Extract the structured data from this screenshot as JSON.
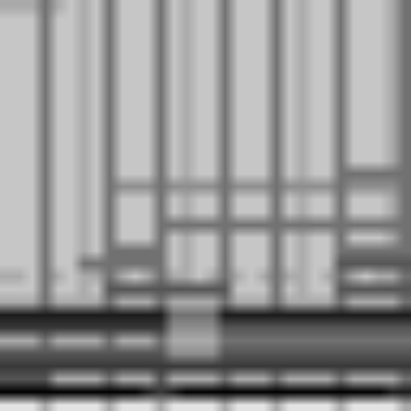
{
  "chart_data": {
    "type": "heatmap",
    "zlim": [
      0,
      9
    ],
    "color": "#000000",
    "tick_labels": false,
    "cells": [
      [
        1,
        1,
        1,
        3,
        1,
        1,
        1,
        1,
        3,
        1,
        1,
        1,
        3,
        1,
        1,
        1,
        1,
        3,
        1,
        1,
        1,
        3,
        1,
        1,
        1,
        1,
        3,
        1,
        1,
        1,
        1,
        3
      ],
      [
        9,
        9,
        9,
        9,
        9,
        9,
        9,
        9,
        9,
        9,
        9,
        8,
        7,
        8,
        9,
        9,
        9,
        9,
        9,
        9,
        9,
        9,
        9,
        9,
        9,
        9,
        9,
        9,
        9,
        9,
        8,
        8
      ],
      [
        6,
        6,
        6,
        6,
        3,
        3,
        3,
        3,
        5,
        3,
        3,
        3,
        6,
        3,
        3,
        3,
        3,
        5,
        3,
        3,
        3,
        5,
        3,
        3,
        3,
        3,
        5,
        3,
        3,
        3,
        3,
        5
      ],
      [
        7,
        7,
        7,
        7,
        7,
        7,
        7,
        7,
        7,
        7,
        7,
        7,
        7,
        7,
        7,
        7,
        7,
        7,
        7,
        7,
        7,
        7,
        7,
        7,
        7,
        7,
        7,
        7,
        7,
        7,
        7,
        7
      ],
      [
        6,
        6,
        6,
        6,
        6,
        6,
        6,
        6,
        6,
        6,
        6,
        6,
        6,
        4,
        4,
        4,
        4,
        6,
        6,
        6,
        6,
        6,
        6,
        6,
        6,
        6,
        6,
        6,
        6,
        6,
        6,
        6
      ],
      [
        3,
        3,
        3,
        5,
        3,
        3,
        3,
        3,
        5,
        3,
        3,
        3,
        5,
        3,
        3,
        3,
        3,
        5,
        5,
        5,
        5,
        5,
        5,
        5,
        5,
        5,
        5,
        5,
        5,
        5,
        5,
        5
      ],
      [
        7,
        7,
        7,
        7,
        7,
        7,
        7,
        7,
        7,
        7,
        7,
        7,
        7,
        4,
        4,
        4,
        4,
        6,
        6,
        6,
        6,
        6,
        6,
        6,
        6,
        6,
        6,
        6,
        6,
        6,
        6,
        6
      ],
      [
        8,
        8,
        8,
        8,
        8,
        8,
        8,
        8,
        8,
        8,
        8,
        8,
        8,
        5,
        5,
        5,
        5,
        8,
        8,
        8,
        8,
        8,
        8,
        8,
        8,
        8,
        8,
        8,
        8,
        8,
        8,
        8
      ],
      [
        3,
        3,
        3,
        5,
        3,
        3,
        3,
        3,
        5,
        3,
        3,
        3,
        5,
        3,
        3,
        3,
        3,
        5,
        3,
        3,
        3,
        5,
        3,
        3,
        3,
        3,
        5,
        3,
        3,
        3,
        3,
        5
      ],
      [
        2,
        2,
        2,
        5,
        2,
        2,
        3,
        2,
        6,
        6,
        6,
        6,
        6,
        6,
        6,
        6,
        6,
        6,
        2,
        2,
        2,
        5,
        2,
        3,
        2,
        2,
        6,
        6,
        6,
        6,
        6,
        6
      ],
      [
        3,
        3,
        2,
        5,
        3,
        2,
        3,
        3,
        5,
        3,
        2,
        3,
        5,
        3,
        3,
        2,
        3,
        5,
        3,
        2,
        3,
        5,
        3,
        3,
        2,
        3,
        5,
        3,
        2,
        3,
        3,
        5
      ],
      [
        2,
        2,
        2,
        5,
        2,
        2,
        5,
        5,
        5,
        5,
        5,
        5,
        5,
        2,
        3,
        2,
        2,
        5,
        2,
        2,
        2,
        5,
        2,
        3,
        2,
        2,
        6,
        6,
        6,
        6,
        6,
        6
      ],
      [
        2,
        2,
        2,
        5,
        2,
        2,
        3,
        2,
        5,
        5,
        5,
        5,
        5,
        2,
        3,
        2,
        2,
        5,
        2,
        2,
        2,
        5,
        2,
        3,
        2,
        2,
        5,
        5,
        5,
        5,
        5,
        5
      ],
      [
        2,
        2,
        2,
        5,
        2,
        2,
        3,
        2,
        5,
        2,
        2,
        2,
        5,
        2,
        3,
        2,
        2,
        5,
        2,
        2,
        2,
        5,
        2,
        3,
        2,
        2,
        5,
        2,
        2,
        2,
        3,
        5
      ],
      [
        2,
        2,
        2,
        5,
        2,
        2,
        3,
        2,
        5,
        2,
        2,
        2,
        5,
        5,
        5,
        5,
        5,
        5,
        5,
        5,
        5,
        5,
        5,
        5,
        5,
        5,
        5,
        5,
        5,
        5,
        5,
        5
      ],
      [
        2,
        2,
        2,
        5,
        2,
        2,
        3,
        2,
        5,
        2,
        2,
        2,
        5,
        2,
        3,
        2,
        2,
        5,
        2,
        2,
        2,
        5,
        2,
        3,
        2,
        2,
        5,
        2,
        2,
        2,
        3,
        5
      ],
      [
        2,
        2,
        2,
        5,
        2,
        2,
        3,
        2,
        5,
        2,
        2,
        2,
        5,
        2,
        3,
        2,
        2,
        5,
        2,
        2,
        2,
        5,
        2,
        3,
        2,
        2,
        5,
        2,
        2,
        2,
        3,
        5
      ],
      [
        2,
        2,
        2,
        5,
        2,
        2,
        3,
        2,
        5,
        4,
        4,
        4,
        5,
        4,
        4,
        4,
        4,
        5,
        4,
        4,
        4,
        5,
        4,
        4,
        4,
        4,
        5,
        4,
        4,
        4,
        4,
        5
      ],
      [
        2,
        2,
        2,
        5,
        2,
        2,
        3,
        2,
        5,
        2,
        2,
        2,
        5,
        2,
        3,
        2,
        2,
        5,
        2,
        2,
        2,
        5,
        2,
        3,
        2,
        2,
        5,
        5,
        5,
        5,
        5,
        5
      ],
      [
        2,
        2,
        2,
        5,
        2,
        2,
        3,
        2,
        5,
        2,
        2,
        2,
        5,
        2,
        3,
        2,
        2,
        5,
        2,
        2,
        2,
        5,
        2,
        3,
        2,
        2,
        5,
        2,
        2,
        2,
        3,
        5
      ],
      [
        2,
        2,
        2,
        5,
        2,
        2,
        3,
        2,
        5,
        2,
        2,
        2,
        5,
        2,
        3,
        2,
        2,
        5,
        2,
        2,
        2,
        5,
        2,
        3,
        2,
        2,
        5,
        2,
        2,
        2,
        3,
        5
      ],
      [
        2,
        2,
        2,
        5,
        2,
        2,
        3,
        2,
        5,
        2,
        2,
        2,
        5,
        2,
        3,
        2,
        2,
        5,
        2,
        2,
        2,
        5,
        2,
        3,
        2,
        2,
        5,
        2,
        2,
        2,
        3,
        5
      ],
      [
        2,
        2,
        2,
        5,
        2,
        2,
        3,
        2,
        5,
        2,
        2,
        2,
        5,
        2,
        3,
        2,
        2,
        5,
        2,
        2,
        2,
        5,
        2,
        3,
        2,
        2,
        5,
        2,
        2,
        2,
        3,
        5
      ],
      [
        2,
        2,
        2,
        5,
        2,
        2,
        3,
        2,
        5,
        2,
        2,
        2,
        5,
        2,
        3,
        2,
        2,
        5,
        2,
        2,
        2,
        5,
        2,
        3,
        2,
        2,
        5,
        2,
        2,
        2,
        3,
        5
      ],
      [
        2,
        2,
        2,
        5,
        2,
        2,
        3,
        2,
        5,
        2,
        2,
        2,
        5,
        2,
        3,
        2,
        2,
        5,
        2,
        2,
        2,
        5,
        2,
        3,
        2,
        2,
        5,
        2,
        2,
        2,
        3,
        5
      ],
      [
        2,
        2,
        2,
        5,
        2,
        2,
        3,
        2,
        5,
        2,
        2,
        2,
        5,
        2,
        3,
        2,
        2,
        5,
        2,
        2,
        2,
        5,
        2,
        3,
        2,
        2,
        5,
        2,
        2,
        2,
        3,
        5
      ],
      [
        2,
        2,
        2,
        5,
        2,
        2,
        3,
        2,
        5,
        2,
        2,
        2,
        5,
        2,
        3,
        2,
        2,
        5,
        2,
        2,
        2,
        5,
        2,
        3,
        2,
        2,
        5,
        2,
        2,
        2,
        3,
        5
      ],
      [
        2,
        2,
        2,
        5,
        2,
        2,
        3,
        2,
        5,
        2,
        2,
        2,
        5,
        2,
        3,
        2,
        2,
        5,
        2,
        2,
        2,
        5,
        2,
        3,
        2,
        2,
        5,
        2,
        2,
        2,
        3,
        5
      ],
      [
        2,
        2,
        2,
        5,
        2,
        2,
        3,
        2,
        5,
        2,
        2,
        2,
        5,
        2,
        3,
        2,
        2,
        5,
        2,
        2,
        2,
        5,
        2,
        3,
        2,
        2,
        5,
        2,
        2,
        2,
        3,
        5
      ],
      [
        2,
        2,
        2,
        5,
        2,
        2,
        3,
        2,
        5,
        2,
        2,
        2,
        5,
        2,
        3,
        2,
        2,
        5,
        2,
        2,
        2,
        5,
        2,
        3,
        2,
        2,
        5,
        2,
        2,
        2,
        3,
        5
      ],
      [
        2,
        2,
        2,
        5,
        2,
        2,
        3,
        2,
        5,
        2,
        2,
        2,
        5,
        2,
        3,
        2,
        2,
        5,
        2,
        2,
        2,
        5,
        2,
        3,
        2,
        2,
        5,
        2,
        2,
        2,
        3,
        5
      ],
      [
        3,
        3,
        3,
        5,
        3,
        2,
        3,
        2,
        5,
        2,
        2,
        2,
        5,
        2,
        3,
        2,
        2,
        5,
        2,
        2,
        2,
        5,
        2,
        3,
        2,
        2,
        5,
        2,
        2,
        2,
        3,
        5
      ]
    ]
  }
}
